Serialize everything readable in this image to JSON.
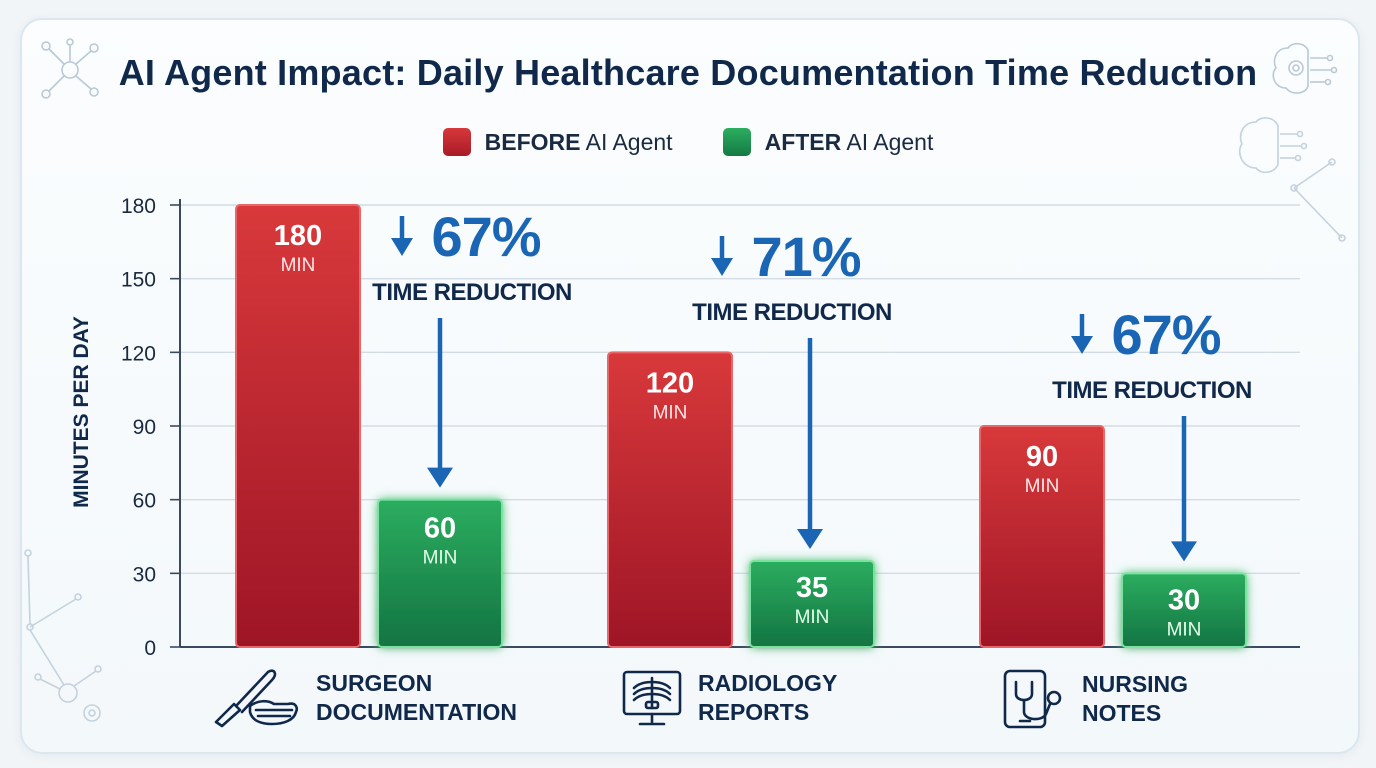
{
  "chart_data": {
    "type": "bar",
    "title": "AI Agent Impact: Daily Healthcare Documentation Time Reduction",
    "xlabel": "",
    "ylabel": "MINUTES PER DAY",
    "ylim": [
      0,
      180
    ],
    "yticks": [
      "0",
      "30",
      "60",
      "90",
      "120",
      "150",
      "180"
    ],
    "grid": true,
    "legend_position": "top-center",
    "categories": [
      "SURGEON DOCUMENTATION",
      "RADIOLOGY REPORTS",
      "NURSING NOTES"
    ],
    "series": [
      {
        "name_bold": "BEFORE",
        "name_rest": "AI Agent",
        "color": "#c62a33",
        "values": [
          180,
          120,
          90
        ],
        "labels": [
          "180",
          "120",
          "90"
        ]
      },
      {
        "name_bold": "AFTER",
        "name_rest": "AI Agent",
        "color": "#1e9451",
        "values": [
          60,
          35,
          30
        ],
        "labels": [
          "60",
          "35",
          "30"
        ]
      }
    ],
    "unit_label": "MIN",
    "annotations": [
      {
        "percent": "67%",
        "text": "TIME REDUCTION"
      },
      {
        "percent": "71%",
        "text": "TIME REDUCTION"
      },
      {
        "percent": "67%",
        "text": "TIME REDUCTION"
      }
    ],
    "category_icons": [
      "scalpel-mask-icon",
      "xray-monitor-icon",
      "tablet-stethoscope-icon"
    ]
  },
  "legend": {
    "before_bold": "BEFORE",
    "before_rest": "AI Agent",
    "after_bold": "AFTER",
    "after_rest": "AI Agent"
  },
  "categories_display": {
    "surgeon": "SURGEON\nDOCUMENTATION",
    "radiology": "RADIOLOGY\nREPORTS",
    "nursing": "NURSING\nNOTES"
  },
  "colors": {
    "arrow": "#1a66b5",
    "title": "#10284a",
    "grid": "#d3dce4"
  }
}
